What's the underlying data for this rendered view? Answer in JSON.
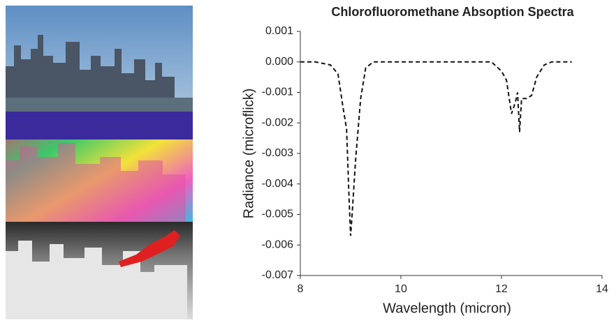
{
  "chart_data": {
    "type": "line",
    "title": "Chlorofluoromethane Absoption Spectra",
    "x_label": "Wavelength (micron)",
    "y_label": "Radiance (microflick)",
    "x": [
      8,
      8.3,
      8.6,
      8.75,
      8.85,
      8.92,
      8.97,
      9.0,
      9.03,
      9.1,
      9.2,
      9.3,
      9.45,
      10,
      11,
      11.8,
      12.0,
      12.1,
      12.2,
      12.28,
      12.32,
      12.36,
      12.4,
      12.5,
      12.6,
      12.7,
      12.85,
      13.0,
      13.4
    ],
    "series": [
      {
        "color": "#111111",
        "values": [
          0,
          0,
          -0.0001,
          -0.0004,
          -0.0015,
          -0.0022,
          -0.0045,
          -0.0057,
          -0.005,
          -0.0032,
          -0.0012,
          -0.0002,
          0,
          0,
          0,
          0,
          -0.0003,
          -0.0006,
          -0.0017,
          -0.0013,
          -0.001,
          -0.0023,
          -0.0012,
          -0.0012,
          -0.0011,
          -0.0005,
          -0.0001,
          0,
          0
        ]
      }
    ],
    "xlim": [
      8,
      14
    ],
    "xticks": [
      8,
      10,
      12,
      14
    ],
    "ylim": [
      -0.007,
      0.001
    ],
    "yticks": [
      0.001,
      {
        "value": 0,
        "label": "0.000"
      },
      -0.001,
      -0.002,
      -0.003,
      -0.004,
      -0.005,
      -0.006,
      -0.007
    ],
    "dashed": true
  }
}
